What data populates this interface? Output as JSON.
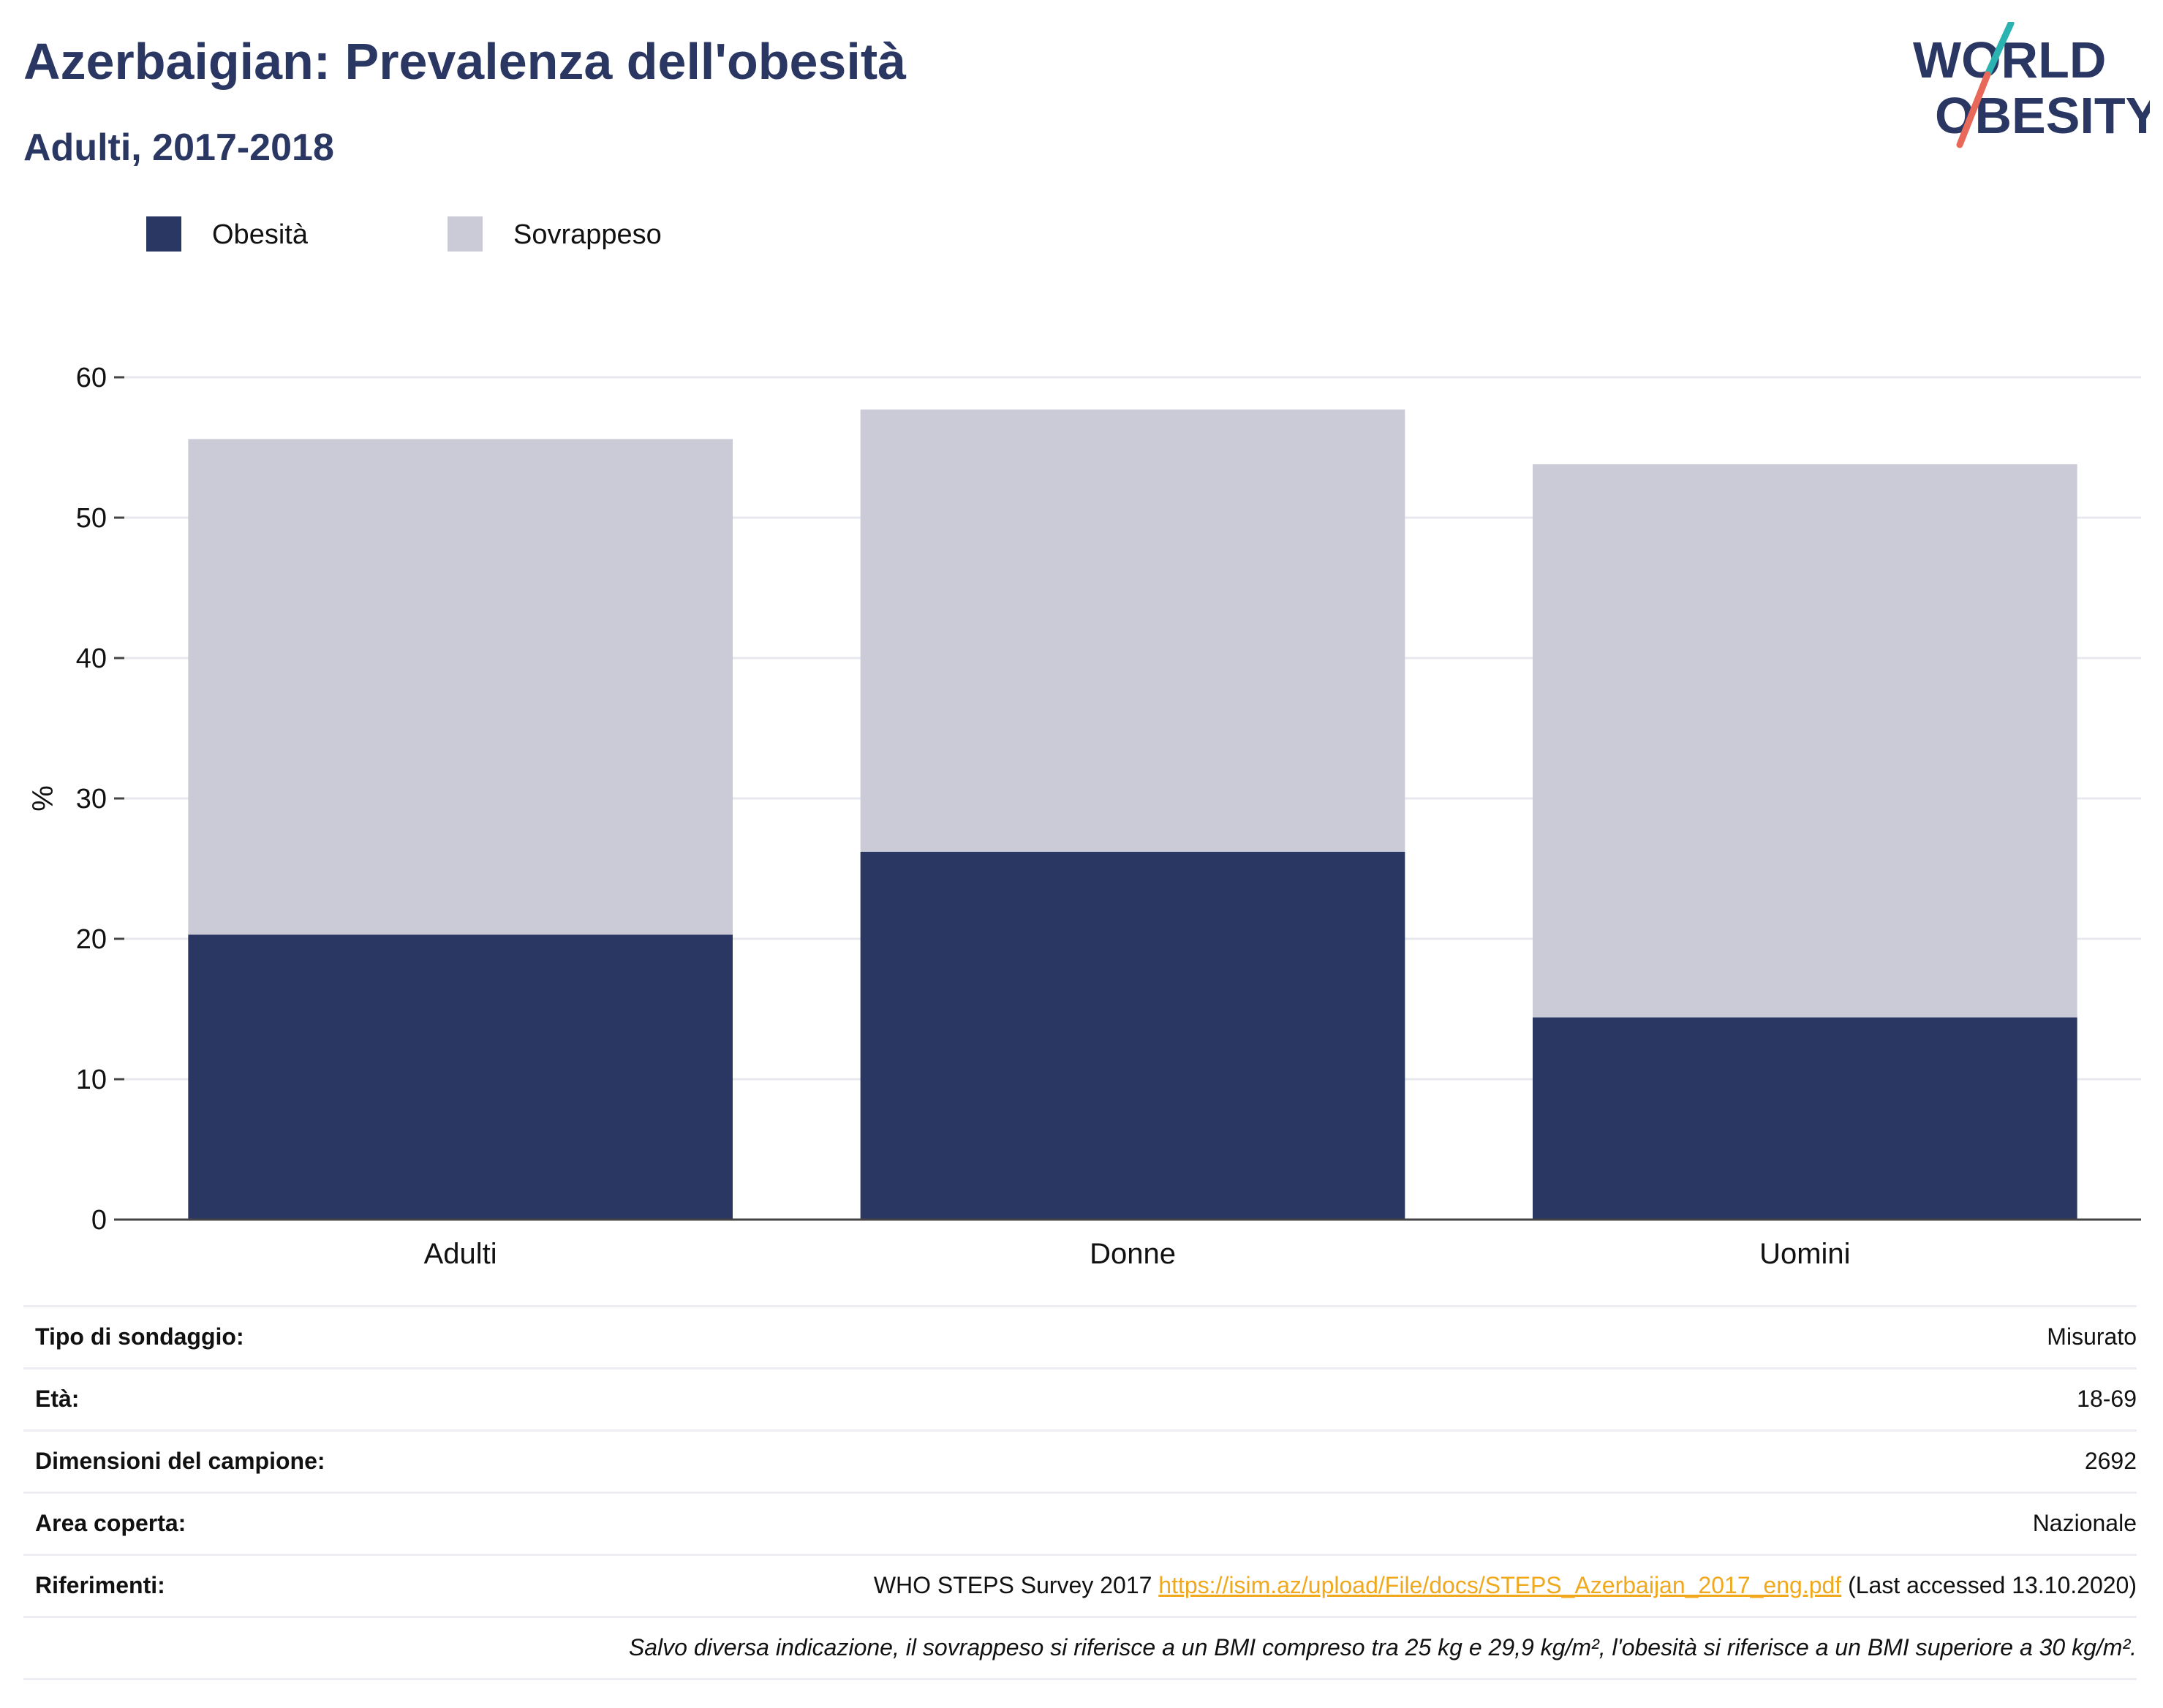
{
  "header": {
    "title": "Azerbaigian: Prevalenza dell'obesità",
    "subtitle": "Adulti, 2017-2018"
  },
  "logo": {
    "line1": "WORLD",
    "line2": "OBESITY",
    "colors": {
      "text": "#2a3763",
      "slash_top": "#2bb3b1",
      "slash_bottom": "#e8695a"
    }
  },
  "legend": [
    {
      "label": "Obesità",
      "color": "#2a3763"
    },
    {
      "label": "Sovrappeso",
      "color": "#cacbd7"
    }
  ],
  "chart_data": {
    "type": "bar",
    "stacked": true,
    "categories": [
      "Adulti",
      "Donne",
      "Uomini"
    ],
    "series": [
      {
        "name": "Obesità",
        "values": [
          20.3,
          26.2,
          14.4
        ],
        "color": "#2a3763"
      },
      {
        "name": "Sovrappeso",
        "values": [
          35.3,
          31.5,
          39.4
        ],
        "color": "#cacbd7"
      }
    ],
    "ylabel": "%",
    "ylim": [
      0,
      60
    ],
    "yticks": [
      0,
      10,
      20,
      30,
      40,
      50,
      60
    ],
    "grid": true,
    "legend_position": "top-left"
  },
  "info": {
    "rows": [
      {
        "label": "Tipo di sondaggio:",
        "value": "Misurato"
      },
      {
        "label": "Età:",
        "value": "18-69"
      },
      {
        "label": "Dimensioni del campione:",
        "value": "2692"
      },
      {
        "label": "Area coperta:",
        "value": "Nazionale"
      }
    ],
    "references": {
      "label": "Riferimenti:",
      "prefix": "WHO STEPS Survey 2017 ",
      "link": "https://isim.az/upload/File/docs/STEPS_Azerbaijan_2017_eng.pdf",
      "suffix": " (Last accessed 13.10.2020)"
    },
    "note": "Salvo diversa indicazione, il sovrappeso si riferisce a un BMI compreso tra 25 kg e 29,9 kg/m², l'obesità si riferisce a un BMI superiore a 30 kg/m²."
  }
}
